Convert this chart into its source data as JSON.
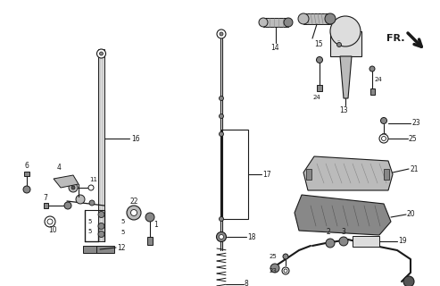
{
  "bg_color": "#ffffff",
  "line_color": "#1a1a1a",
  "gray_dark": "#555555",
  "gray_mid": "#888888",
  "gray_light": "#bbbbbb",
  "gray_lighter": "#dddddd",
  "fr_label": "FR.",
  "figsize": [
    4.93,
    3.2
  ],
  "dpi": 100
}
